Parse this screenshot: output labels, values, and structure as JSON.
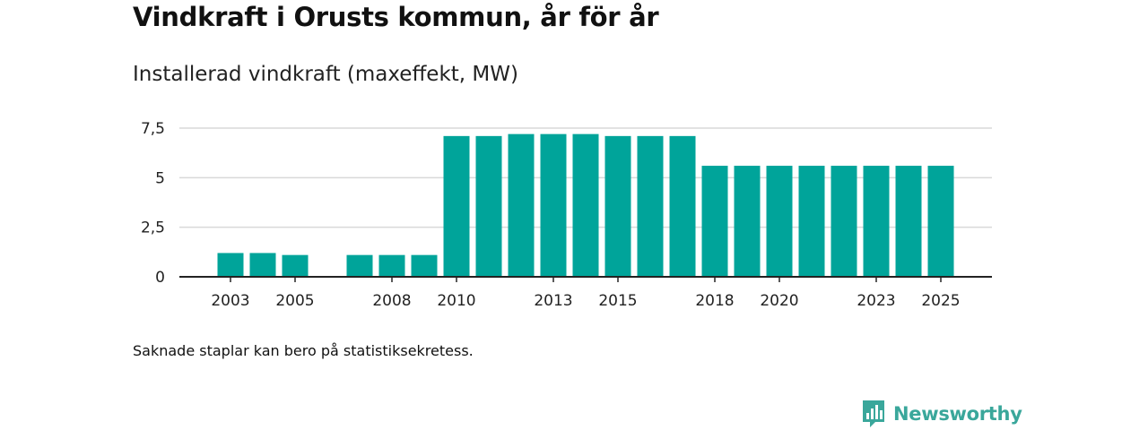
{
  "header": {
    "title": "Vindkraft i Orusts kommun, år för år",
    "subtitle": "Installerad vindkraft (maxeffekt, MW)"
  },
  "footer": {
    "note": "Saknade staplar kan bero på statistiksekretess.",
    "brand": "Newsworthy"
  },
  "colors": {
    "bar": "#00a49a",
    "brand": "#3aa79b",
    "grid": "#d9d9d9",
    "axis": "#222222"
  },
  "chart_data": {
    "type": "bar",
    "title": "Vindkraft i Orusts kommun, år för år",
    "ylabel": "Installerad vindkraft (maxeffekt, MW)",
    "xlabel": "",
    "categories": [
      2003,
      2004,
      2005,
      2006,
      2007,
      2008,
      2009,
      2010,
      2011,
      2012,
      2013,
      2014,
      2015,
      2016,
      2017,
      2018,
      2019,
      2020,
      2021,
      2022,
      2023,
      2024,
      2025
    ],
    "values": [
      1.2,
      1.2,
      1.1,
      null,
      1.1,
      1.1,
      1.1,
      7.1,
      7.1,
      7.2,
      7.2,
      7.2,
      7.1,
      7.1,
      7.1,
      5.6,
      5.6,
      5.6,
      5.6,
      5.6,
      5.6,
      5.6,
      5.6
    ],
    "xtick_labels": [
      "2003",
      "2005",
      "2008",
      "2010",
      "2013",
      "2015",
      "2018",
      "2020",
      "2023",
      "2025"
    ],
    "yticks": [
      0,
      2.5,
      5,
      7.5
    ],
    "ytick_labels": [
      "0",
      "2,5",
      "5",
      "7,5"
    ],
    "ylim": [
      0,
      7.5
    ],
    "grid": true
  }
}
